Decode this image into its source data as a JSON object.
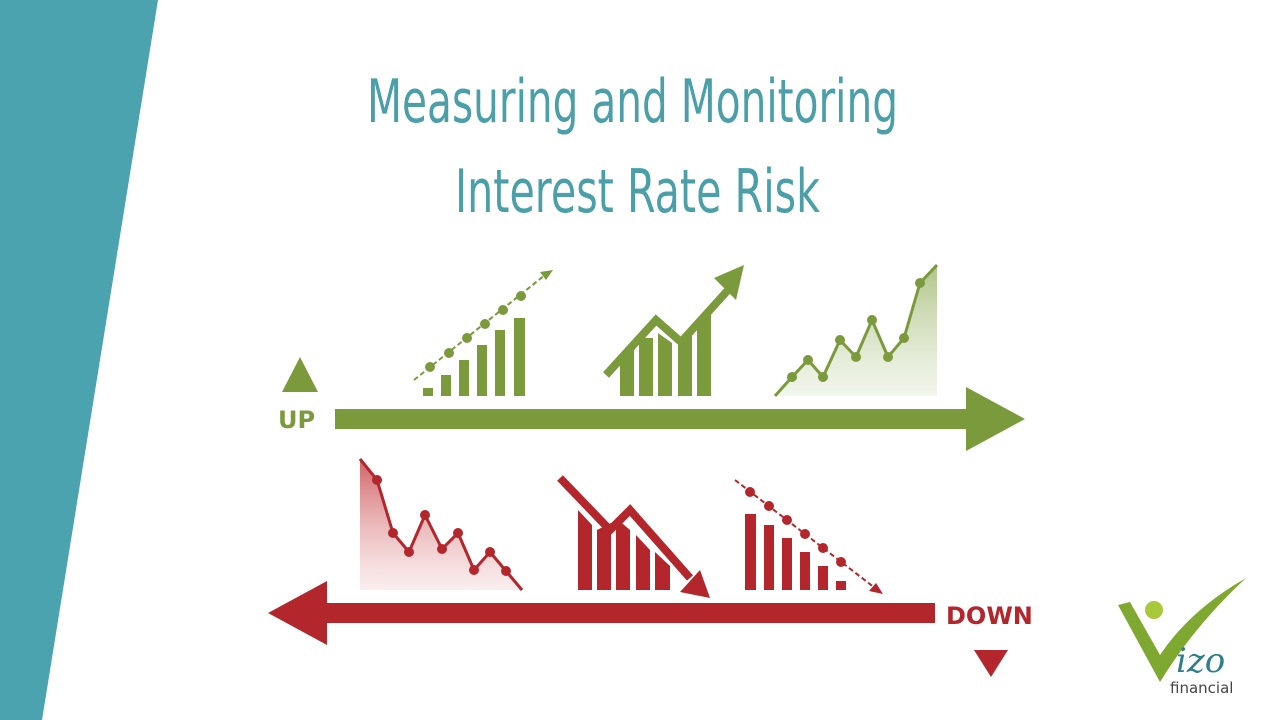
{
  "header": {
    "title_line1": "Measuring and Monitoring",
    "title_line2": "Interest Rate Risk"
  },
  "diagram": {
    "up_label": "UP",
    "down_label": "DOWN"
  },
  "logo": {
    "name": "izo",
    "tagline": "financial"
  }
}
